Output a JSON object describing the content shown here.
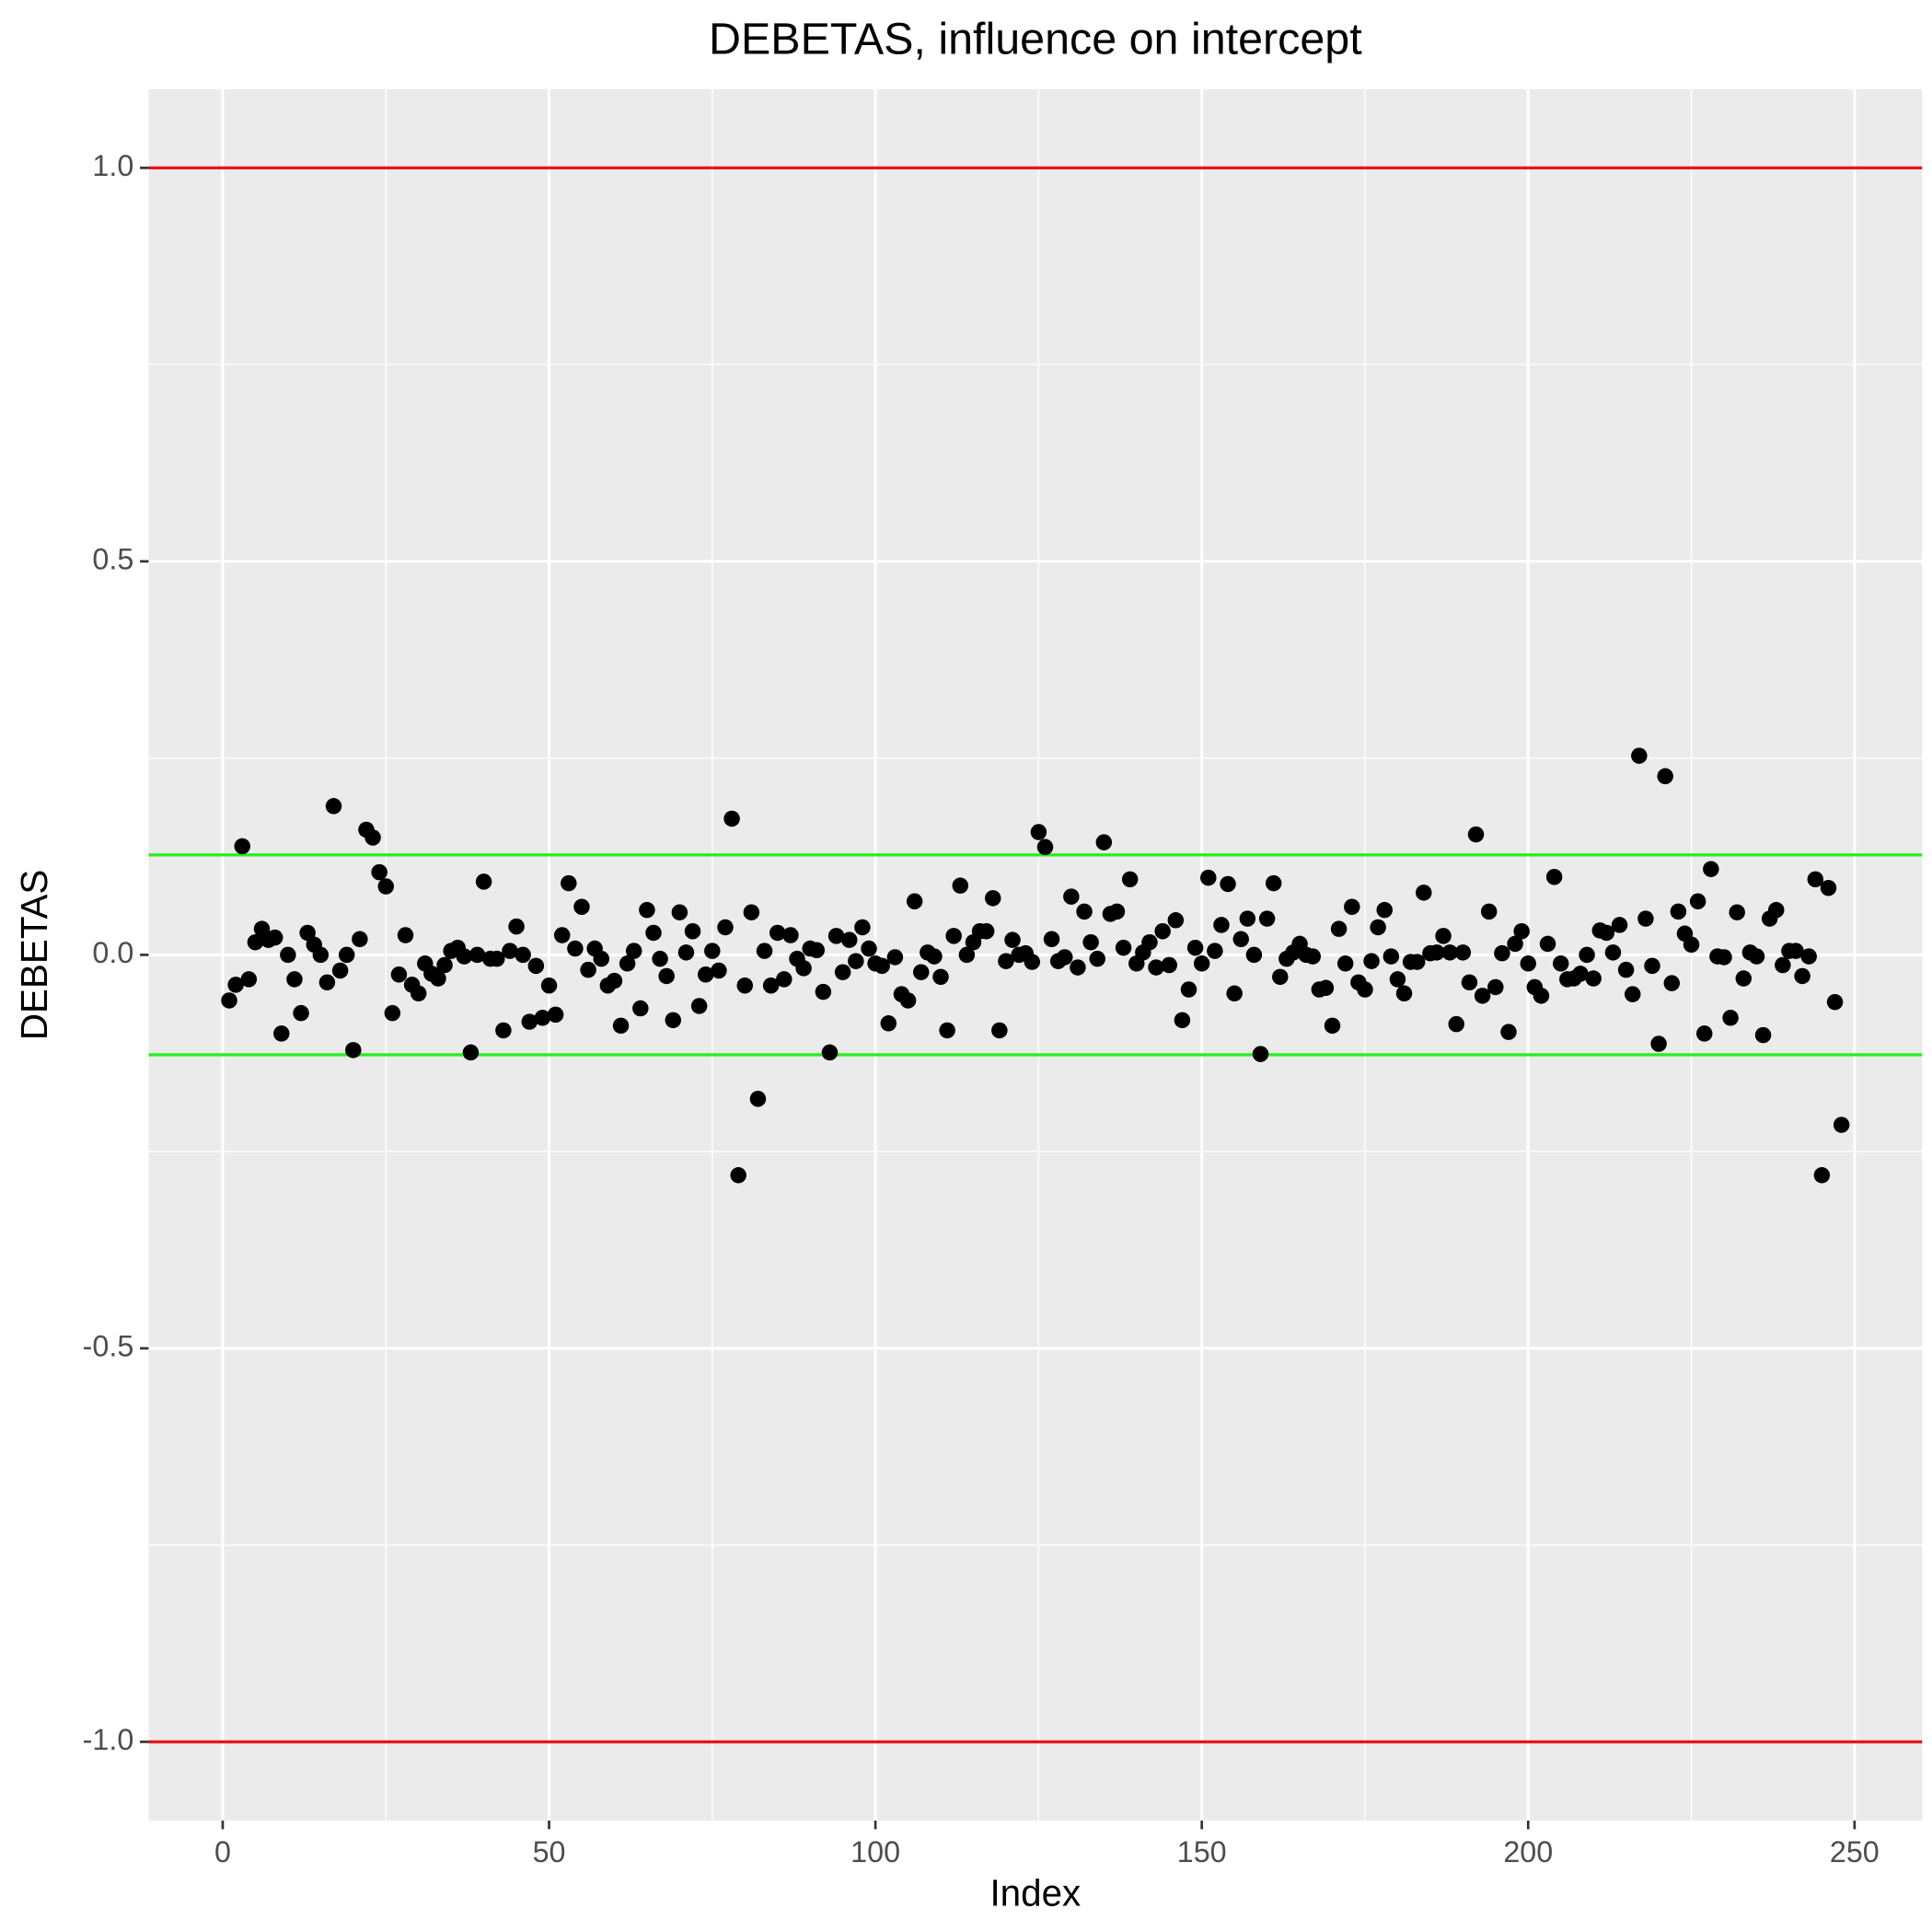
{
  "chart_data": {
    "type": "scatter",
    "title": "DEBETAS, influence on intercept",
    "x_label": "Index",
    "y_label": "DEBETAS",
    "color": "#000000",
    "x": [
      1,
      2,
      3,
      4,
      5,
      6,
      7,
      8,
      9,
      10,
      11,
      12,
      13,
      14,
      15,
      16,
      17,
      18,
      19,
      20,
      21,
      22,
      23,
      24,
      25,
      26,
      27,
      28,
      29,
      30,
      31,
      32,
      33,
      34,
      35,
      36,
      37,
      38,
      39,
      40,
      41,
      42,
      43,
      44,
      45,
      46,
      47,
      48,
      49,
      50,
      51,
      52,
      53,
      54,
      55,
      56,
      57,
      58,
      59,
      60,
      61,
      62,
      63,
      64,
      65,
      66,
      67,
      68,
      69,
      70,
      71,
      72,
      73,
      74,
      75,
      76,
      77,
      78,
      79,
      80,
      81,
      82,
      83,
      84,
      85,
      86,
      87,
      88,
      89,
      90,
      91,
      92,
      93,
      94,
      95,
      96,
      97,
      98,
      99,
      100,
      101,
      102,
      103,
      104,
      105,
      106,
      107,
      108,
      109,
      110,
      111,
      112,
      113,
      114,
      115,
      116,
      117,
      118,
      119,
      120,
      121,
      122,
      123,
      124,
      125,
      126,
      127,
      128,
      129,
      130,
      131,
      132,
      133,
      134,
      135,
      136,
      137,
      138,
      139,
      140,
      141,
      142,
      143,
      144,
      145,
      146,
      147,
      148,
      149,
      150,
      151,
      152,
      153,
      154,
      155,
      156,
      157,
      158,
      159,
      160,
      161,
      162,
      163,
      164,
      165,
      166,
      167,
      168,
      169,
      170,
      171,
      172,
      173,
      174,
      175,
      176,
      177,
      178,
      179,
      180,
      181,
      182,
      183,
      184,
      185,
      186,
      187,
      188,
      189,
      190,
      191,
      192,
      193,
      194,
      195,
      196,
      197,
      198,
      199,
      200,
      201,
      202,
      203,
      204,
      205,
      206,
      207,
      208,
      209,
      210,
      211,
      212,
      213,
      214,
      215,
      216,
      217,
      218,
      219,
      220,
      221,
      222,
      223,
      224,
      225,
      226,
      227,
      228,
      229,
      230,
      231,
      232,
      233,
      234,
      235,
      236,
      237,
      238,
      239,
      240,
      241,
      242,
      243,
      244,
      245,
      246,
      247,
      248
    ],
    "values": [
      -0.058,
      -0.038,
      0.138,
      -0.031,
      0.016,
      0.033,
      0.019,
      0.022,
      -0.1,
      0.0,
      -0.031,
      -0.074,
      0.028,
      0.013,
      0.0,
      -0.035,
      0.189,
      -0.02,
      0.0,
      -0.121,
      0.02,
      0.159,
      0.149,
      0.105,
      0.087,
      -0.074,
      -0.025,
      0.025,
      -0.038,
      -0.049,
      -0.011,
      -0.024,
      -0.03,
      -0.013,
      0.005,
      0.009,
      -0.002,
      -0.124,
      0.0,
      0.093,
      -0.005,
      -0.005,
      -0.096,
      0.005,
      0.036,
      0.0,
      -0.085,
      -0.014,
      -0.08,
      -0.039,
      -0.076,
      0.025,
      0.091,
      0.008,
      0.061,
      -0.019,
      0.008,
      -0.005,
      -0.039,
      -0.033,
      -0.09,
      -0.011,
      0.005,
      -0.068,
      0.057,
      0.028,
      -0.005,
      -0.027,
      -0.083,
      0.054,
      0.003,
      0.03,
      -0.065,
      -0.025,
      0.005,
      -0.02,
      0.035,
      0.173,
      -0.28,
      -0.039,
      0.054,
      -0.183,
      0.005,
      -0.039,
      0.028,
      -0.031,
      0.025,
      -0.005,
      -0.017,
      0.008,
      0.006,
      -0.047,
      -0.124,
      0.024,
      -0.022,
      0.019,
      -0.008,
      0.035,
      0.008,
      -0.011,
      -0.014,
      -0.087,
      -0.003,
      -0.05,
      -0.058,
      0.068,
      -0.022,
      0.003,
      -0.002,
      -0.028,
      -0.096,
      0.024,
      0.088,
      0.0,
      0.016,
      0.03,
      0.03,
      0.072,
      -0.096,
      -0.008,
      0.019,
      0.0,
      0.002,
      -0.009,
      0.156,
      0.137,
      0.02,
      -0.008,
      -0.003,
      0.074,
      -0.016,
      0.055,
      0.016,
      -0.005,
      0.143,
      0.052,
      0.055,
      0.009,
      0.096,
      -0.011,
      0.003,
      0.016,
      -0.016,
      0.03,
      -0.013,
      0.044,
      -0.083,
      -0.044,
      0.009,
      -0.011,
      0.098,
      0.005,
      0.038,
      0.09,
      -0.049,
      0.02,
      0.046,
      0.0,
      -0.126,
      0.046,
      0.091,
      -0.028,
      -0.005,
      0.003,
      0.014,
      0.0,
      -0.002,
      -0.044,
      -0.042,
      -0.09,
      0.033,
      -0.011,
      0.061,
      -0.035,
      -0.044,
      -0.008,
      0.035,
      0.057,
      -0.002,
      -0.031,
      -0.049,
      -0.009,
      -0.009,
      0.079,
      0.002,
      0.003,
      0.024,
      0.003,
      -0.088,
      0.003,
      -0.035,
      0.153,
      -0.052,
      0.055,
      -0.041,
      0.002,
      -0.098,
      0.014,
      0.03,
      -0.011,
      -0.041,
      -0.052,
      0.014,
      0.099,
      -0.011,
      -0.031,
      -0.03,
      -0.024,
      0.0,
      -0.03,
      0.031,
      0.028,
      0.003,
      0.038,
      -0.019,
      -0.05,
      0.253,
      0.046,
      -0.014,
      -0.113,
      0.227,
      -0.036,
      0.055,
      0.027,
      0.013,
      0.068,
      -0.1,
      0.109,
      -0.002,
      -0.003,
      -0.08,
      0.054,
      -0.03,
      0.003,
      -0.002,
      -0.102,
      0.046,
      0.057,
      -0.013,
      0.005,
      0.005,
      -0.027,
      -0.002,
      0.096,
      -0.28,
      0.085,
      -0.06,
      -0.216
    ],
    "hlines": [
      {
        "value": 1,
        "color": "#e8151b"
      },
      {
        "value": -1,
        "color": "#e8151b"
      },
      {
        "value": 0.127,
        "color": "#2aee1f"
      },
      {
        "value": -0.127,
        "color": "#2aee1f"
      }
    ],
    "xlim": [
      -11.35,
      260.35
    ],
    "ylim": [
      -1.1,
      1.1
    ],
    "xticks": [
      0,
      50,
      100,
      150,
      200,
      250
    ],
    "yticks": [
      {
        "value": -1,
        "label": "-1.0"
      },
      -0.5,
      {
        "value": 0,
        "label": "0.0"
      },
      0.5,
      {
        "value": 1,
        "label": "1.0"
      }
    ],
    "x_minor_grid": [
      25,
      75,
      125,
      175,
      225
    ],
    "y_minor_grid": [
      -0.75,
      -0.25,
      0.25,
      0.75
    ],
    "grid": true
  }
}
